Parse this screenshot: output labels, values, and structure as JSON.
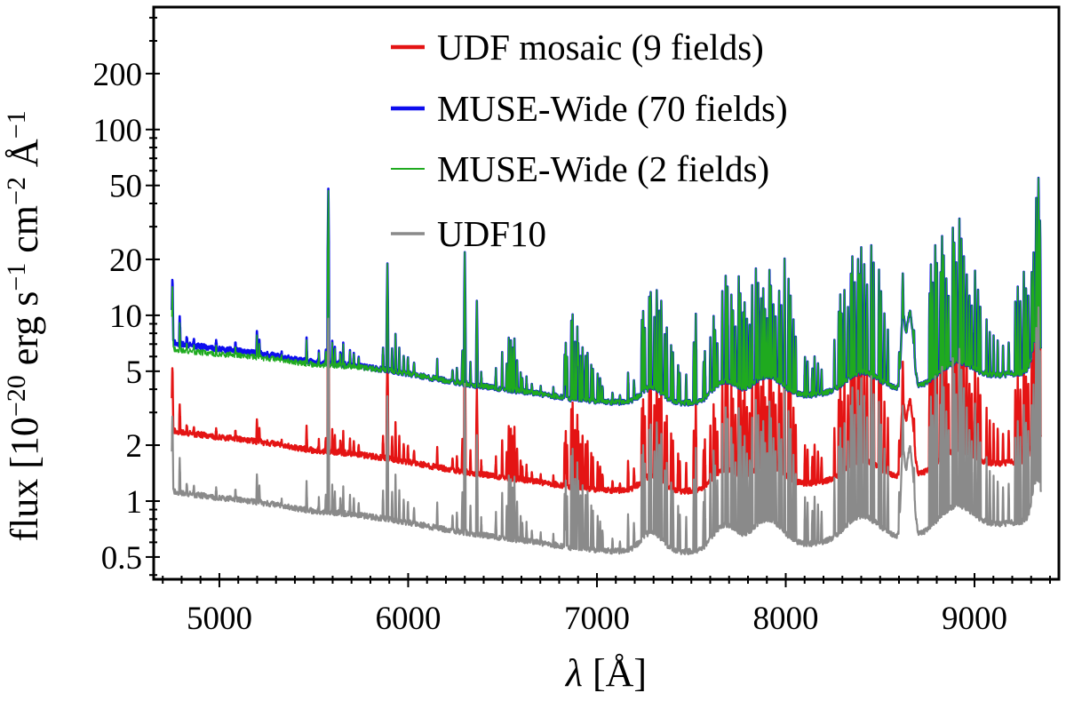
{
  "figure": {
    "background": "#ffffff"
  },
  "chart_data": {
    "type": "line",
    "title": "",
    "xlabel_text": "λ [Å]",
    "xlabel_parts": [
      {
        "t": "λ",
        "italic": true
      },
      {
        "t": " [Å]",
        "italic": false
      }
    ],
    "ylabel_text": "flux [10−20 erg s−1 cm−2 Å−1",
    "ylabel_parts": [
      {
        "t": "flux [10"
      },
      {
        "t": "−20",
        "sup": true
      },
      {
        "t": " erg s"
      },
      {
        "t": "−1",
        "sup": true
      },
      {
        "t": " cm"
      },
      {
        "t": "−2",
        "sup": true
      },
      {
        "t": " Å"
      },
      {
        "t": "−1",
        "sup": true
      }
    ],
    "x_scale": "linear",
    "y_scale": "log",
    "xlim": [
      4652,
      9447
    ],
    "ylim": [
      0.3794,
      456
    ],
    "x_major_ticks": [
      5000,
      6000,
      7000,
      8000,
      9000
    ],
    "x_minor_step": 100,
    "y_major_ticks": [
      0.5,
      1,
      2,
      5,
      10,
      20,
      50,
      100,
      200
    ],
    "y_minor_ticks": [
      0.4,
      0.6,
      0.7,
      0.8,
      0.9,
      3,
      4,
      6,
      7,
      8,
      9,
      30,
      40,
      60,
      70,
      80,
      90,
      300,
      400
    ],
    "data_range": [
      4748,
      9352
    ],
    "grid": "off",
    "legend_position": "upper center-right, no frame",
    "jitter": 0.035,
    "series": [
      {
        "id": "udf-mosaic",
        "name": "UDF mosaic (9 fields)",
        "color": "#e41414",
        "scale": 0.335,
        "spike_gain": 1.0,
        "lw": 2.4,
        "legend_lw": 4.5
      },
      {
        "id": "muse-wide-70",
        "name": "MUSE-Wide (70 fields)",
        "color": "#0d0dee",
        "scale": 1.0,
        "spike_gain": 1.0,
        "lw": 2.6,
        "legend_lw": 4.5
      },
      {
        "id": "muse-wide-2",
        "name": "MUSE-Wide (2 fields)",
        "color": "#1faa1f",
        "scale": 1.0,
        "spike_gain": 1.0,
        "lw": 1.5,
        "legend_lw": 2,
        "left_dip": {
          "factor": 0.92,
          "end": 5900
        }
      },
      {
        "id": "udf10",
        "name": "UDF10",
        "color": "#8a8a8a",
        "scale": 0.158,
        "spike_gain": 1.3,
        "lw": 2.2,
        "legend_lw": 3.5
      }
    ],
    "continuum_points": [
      [
        4748,
        7.3
      ],
      [
        4760,
        7.15
      ],
      [
        4800,
        7.0
      ],
      [
        4900,
        6.8
      ],
      [
        5000,
        6.6
      ],
      [
        5100,
        6.45
      ],
      [
        5200,
        6.25
      ],
      [
        5300,
        6.05
      ],
      [
        5400,
        5.8
      ],
      [
        5500,
        5.6
      ],
      [
        5600,
        5.5
      ],
      [
        5700,
        5.38
      ],
      [
        5800,
        5.22
      ],
      [
        5900,
        5.05
      ],
      [
        6000,
        4.85
      ],
      [
        6100,
        4.65
      ],
      [
        6200,
        4.45
      ],
      [
        6300,
        4.3
      ],
      [
        6400,
        4.15
      ],
      [
        6500,
        4.02
      ],
      [
        6600,
        3.9
      ],
      [
        6700,
        3.78
      ],
      [
        6800,
        3.64
      ],
      [
        6900,
        3.52
      ],
      [
        7000,
        3.45
      ],
      [
        7100,
        3.4
      ],
      [
        7200,
        3.36
      ],
      [
        7300,
        3.34
      ],
      [
        7400,
        3.36
      ],
      [
        7500,
        3.38
      ],
      [
        7600,
        3.42
      ],
      [
        7700,
        3.47
      ],
      [
        7800,
        3.52
      ],
      [
        7900,
        3.58
      ],
      [
        8000,
        3.65
      ],
      [
        8100,
        3.7
      ],
      [
        8200,
        3.74
      ],
      [
        8300,
        3.78
      ],
      [
        8400,
        3.85
      ],
      [
        8500,
        3.92
      ],
      [
        8600,
        4.0
      ],
      [
        8700,
        4.08
      ],
      [
        8800,
        4.15
      ],
      [
        8900,
        4.3
      ],
      [
        9000,
        4.5
      ],
      [
        9100,
        4.7
      ],
      [
        9200,
        4.85
      ],
      [
        9300,
        5.0
      ],
      [
        9352,
        5.1
      ]
    ],
    "sky_lines": [
      [
        4751,
        1.2,
        5
      ],
      [
        4790,
        0.45
      ],
      [
        4827,
        0.12
      ],
      [
        4865,
        0.1
      ],
      [
        4983,
        0.08
      ],
      [
        5085,
        0.1
      ],
      [
        5199,
        0.32
      ],
      [
        5212,
        0.15
      ],
      [
        5330,
        0.08
      ],
      [
        5462,
        0.3
      ],
      [
        5527,
        0.12
      ],
      [
        5564,
        0.2
      ],
      [
        5577,
        7.6,
        5
      ],
      [
        5598,
        0.28
      ],
      [
        5612,
        0.22
      ],
      [
        5641,
        0.18
      ],
      [
        5656,
        0.28
      ],
      [
        5692,
        0.22
      ],
      [
        5712,
        0.18
      ],
      [
        5738,
        0.12
      ],
      [
        5867,
        0.35
      ],
      [
        5890,
        2.8,
        5
      ],
      [
        5915,
        0.3
      ],
      [
        5933,
        0.55
      ],
      [
        5953,
        0.38
      ],
      [
        5976,
        0.28
      ],
      [
        5999,
        0.22
      ],
      [
        6031,
        0.18
      ],
      [
        6154,
        0.28
      ],
      [
        6235,
        0.18
      ],
      [
        6258,
        0.22
      ],
      [
        6287,
        0.45
      ],
      [
        6300,
        3.95,
        5
      ],
      [
        6330,
        0.28
      ],
      [
        6364,
        1.9,
        5
      ],
      [
        6387,
        0.18
      ],
      [
        6465,
        0.28
      ],
      [
        6498,
        0.55
      ],
      [
        6522,
        0.4
      ],
      [
        6533,
        0.95
      ],
      [
        6544,
        0.8
      ],
      [
        6554,
        0.65
      ],
      [
        6563,
        0.9
      ],
      [
        6577,
        0.5
      ],
      [
        6596,
        0.28
      ],
      [
        6605,
        0.22
      ],
      [
        6627,
        0.18
      ],
      [
        6655,
        0.1
      ],
      [
        6702,
        0.12
      ],
      [
        6769,
        0.1
      ],
      [
        6829,
        0.75
      ],
      [
        6835,
        0.95
      ],
      [
        6842,
        0.7
      ],
      [
        6864,
        1.6
      ],
      [
        6871,
        1.9
      ],
      [
        6884,
        1.1
      ],
      [
        6896,
        1.4
      ],
      [
        6901,
        1.0
      ],
      [
        6913,
        0.7
      ],
      [
        6924,
        0.95
      ],
      [
        6940,
        0.75
      ],
      [
        6950,
        0.85
      ],
      [
        6970,
        0.55
      ],
      [
        6979,
        0.45
      ],
      [
        7004,
        0.4
      ],
      [
        7017,
        0.32
      ],
      [
        7029,
        0.25
      ],
      [
        7082,
        0.15
      ],
      [
        7122,
        0.12
      ],
      [
        7165,
        0.45
      ],
      [
        7196,
        0.3
      ],
      [
        7238,
        1.6
      ],
      [
        7245,
        1.9
      ],
      [
        7254,
        1.3
      ],
      [
        7277,
        2.5
      ],
      [
        7285,
        2.9
      ],
      [
        7304,
        1.7
      ],
      [
        7317,
        3.0
      ],
      [
        7330,
        1.9
      ],
      [
        7341,
        2.5
      ],
      [
        7359,
        1.2
      ],
      [
        7370,
        1.5
      ],
      [
        7393,
        1.0
      ],
      [
        7403,
        0.8
      ],
      [
        7430,
        0.55
      ],
      [
        7439,
        0.45
      ],
      [
        7473,
        0.4
      ],
      [
        7513,
        1.1
      ],
      [
        7524,
        2.0
      ],
      [
        7565,
        0.6
      ],
      [
        7572,
        0.8
      ],
      [
        7601,
        1.1
      ],
      [
        7618,
        1.7
      ],
      [
        7626,
        1.3
      ],
      [
        7638,
        0.9
      ],
      [
        7664,
        2.6
      ],
      [
        7682,
        3.6
      ],
      [
        7692,
        2.9
      ],
      [
        7712,
        2.4
      ],
      [
        7721,
        1.8
      ],
      [
        7734,
        1.2
      ],
      [
        7751,
        3.4
      ],
      [
        7760,
        2.6
      ],
      [
        7774,
        1.8
      ],
      [
        7782,
        2.2
      ],
      [
        7795,
        1.6
      ],
      [
        7809,
        1.3
      ],
      [
        7822,
        2.8
      ],
      [
        7842,
        3.9
      ],
      [
        7854,
        3.0
      ],
      [
        7869,
        2.1
      ],
      [
        7881,
        2.6
      ],
      [
        7891,
        1.8
      ],
      [
        7902,
        1.4
      ],
      [
        7914,
        3.6
      ],
      [
        7922,
        2.8
      ],
      [
        7935,
        1.9
      ],
      [
        7947,
        1.5
      ],
      [
        7965,
        2.4
      ],
      [
        7977,
        1.9
      ],
      [
        7994,
        4.5
      ],
      [
        8015,
        3.2
      ],
      [
        8026,
        2.3
      ],
      [
        8041,
        1.5
      ],
      [
        8053,
        1.0
      ],
      [
        8102,
        0.6
      ],
      [
        8116,
        0.5
      ],
      [
        8141,
        0.4
      ],
      [
        8153,
        0.6
      ],
      [
        8171,
        0.5
      ],
      [
        8190,
        0.4
      ],
      [
        8258,
        0.9
      ],
      [
        8281,
        1.6
      ],
      [
        8289,
        2.2
      ],
      [
        8297,
        1.5
      ],
      [
        8311,
        2.4
      ],
      [
        8330,
        1.8
      ],
      [
        8345,
        3.2
      ],
      [
        8353,
        4.3
      ],
      [
        8366,
        2.8
      ],
      [
        8383,
        3.9
      ],
      [
        8391,
        3.0
      ],
      [
        8400,
        4.7
      ],
      [
        8416,
        3.5
      ],
      [
        8431,
        2.6
      ],
      [
        8453,
        4.9
      ],
      [
        8466,
        3.7
      ],
      [
        8494,
        3.2
      ],
      [
        8505,
        2.3
      ],
      [
        8523,
        1.5
      ],
      [
        8541,
        1.0
      ],
      [
        8601,
        0.5
      ],
      [
        8620,
        1.8,
        4
      ],
      [
        8680,
        0.45
      ],
      [
        8762,
        2.2
      ],
      [
        8769,
        3.4
      ],
      [
        8779,
        2.6
      ],
      [
        8792,
        4.6
      ],
      [
        8801,
        3.4
      ],
      [
        8820,
        2.8
      ],
      [
        8828,
        5.2
      ],
      [
        8837,
        3.6
      ],
      [
        8851,
        2.4
      ],
      [
        8863,
        1.7
      ],
      [
        8885,
        5.6
      ],
      [
        8893,
        4.3
      ],
      [
        8904,
        3.2
      ],
      [
        8920,
        6.2
      ],
      [
        8931,
        4.5
      ],
      [
        8944,
        3.6
      ],
      [
        8959,
        2.4
      ],
      [
        8973,
        1.7
      ],
      [
        8986,
        1.3
      ],
      [
        9003,
        2.6
      ],
      [
        9019,
        1.9
      ],
      [
        9031,
        1.4
      ],
      [
        9064,
        0.95
      ],
      [
        9081,
        0.75
      ],
      [
        9101,
        0.6
      ],
      [
        9123,
        0.5
      ],
      [
        9151,
        0.45
      ],
      [
        9181,
        0.5
      ],
      [
        9216,
        1.4
      ],
      [
        9229,
        1.9
      ],
      [
        9243,
        1.5
      ],
      [
        9261,
        2.5
      ],
      [
        9273,
        1.9
      ],
      [
        9285,
        1.5
      ],
      [
        9303,
        2.3
      ],
      [
        9313,
        3.1
      ],
      [
        9327,
        6.8
      ],
      [
        9339,
        9.2,
        4
      ],
      [
        9347,
        5.2
      ]
    ],
    "broad_bumps": [
      [
        7290,
        0.22,
        55
      ],
      [
        7680,
        0.28,
        60
      ],
      [
        7900,
        0.32,
        75
      ],
      [
        8400,
        0.28,
        85
      ],
      [
        8621,
        1.35,
        9
      ],
      [
        8657,
        1.55,
        16
      ],
      [
        8900,
        0.3,
        85
      ],
      [
        9330,
        0.5,
        22
      ]
    ]
  }
}
